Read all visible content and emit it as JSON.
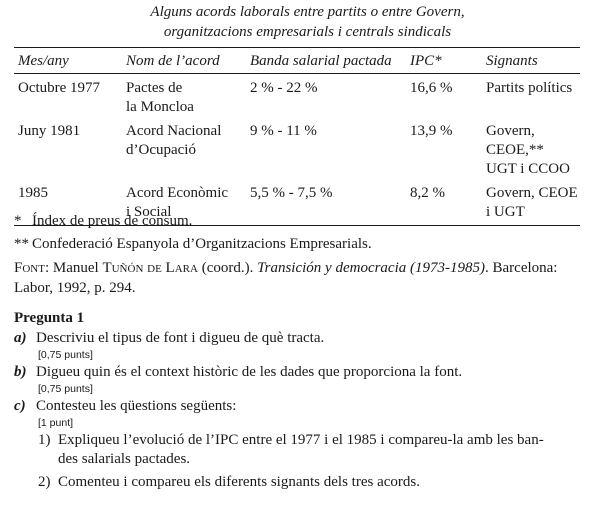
{
  "caption": {
    "line1": "Alguns acords laborals entre partits o entre Govern,",
    "line2": "organitzacions empresarials i centrals sindicals"
  },
  "table": {
    "headers": [
      "Mes/any",
      "Nom de l’acord",
      "Banda salarial pactada",
      "IPC*",
      "Signants"
    ],
    "rows": [
      {
        "date": "Octubre 1977",
        "name_lines": [
          "Pactes de",
          "la Moncloa"
        ],
        "band": "2 % - 22 %",
        "ipc": "16,6 %",
        "signers_lines": [
          "Partits polítics"
        ]
      },
      {
        "date": "Juny 1981",
        "name_lines": [
          "Acord Nacional",
          "d’Ocupació"
        ],
        "band": "9 % - 11 %",
        "ipc": "13,9 %",
        "signers_lines": [
          "Govern,",
          "CEOE,**",
          "UGT i CCOO"
        ]
      },
      {
        "date": "1985",
        "name_lines": [
          "Acord Econòmic",
          "i Social"
        ],
        "band": "5,5 % - 7,5 %",
        "ipc": "8,2 %",
        "signers_lines": [
          "Govern, CEOE",
          "i UGT"
        ]
      }
    ]
  },
  "notes": {
    "note1_mark": "*",
    "note1_text": "Índex de preus de consum.",
    "note2_mark": "**",
    "note2_text": "Confederació Espanyola d’Organitzacions Empresarials.",
    "font_label": "Font",
    "font_author_first": "Manuel ",
    "font_author_last": "Tuñón de Lara",
    "font_author_role": " (coord.). ",
    "font_title": "Transición y democracia (1973-1985)",
    "font_rest_line1": ". Barcelona:",
    "font_rest_line2": "Labor, 1992, p. 294."
  },
  "questions": {
    "title": "Pregunta 1",
    "items": [
      {
        "letter": "a)",
        "text": "Descriviu el tipus de font i digueu de què tracta.",
        "points": "[0,75 punts]"
      },
      {
        "letter": "b)",
        "text": "Digueu quin és el context històric de les dades que proporciona la font.",
        "points": "[0,75 punts]"
      },
      {
        "letter": "c)",
        "text": "Contesteu les qüestions següents:",
        "points": "[1 punt]"
      }
    ],
    "sub": [
      {
        "num": "1)",
        "line1": "Expliqueu l’evolució de l’IPC entre el 1977 i el 1985 i compareu-la amb les ban-",
        "line2": "des salarials pactades."
      },
      {
        "num": "2)",
        "line1": "Comenteu i compareu els diferents signants dels tres acords."
      }
    ]
  }
}
